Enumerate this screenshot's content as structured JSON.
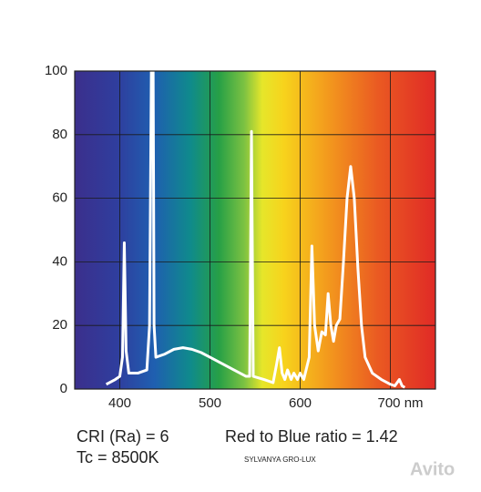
{
  "chart_data": {
    "type": "line",
    "x": [
      385,
      395,
      400,
      403,
      405,
      407,
      410,
      420,
      430,
      433,
      435,
      437,
      438,
      440,
      450,
      460,
      470,
      480,
      490,
      500,
      510,
      520,
      530,
      540,
      544,
      546,
      548,
      560,
      570,
      574,
      577,
      580,
      583,
      586,
      590,
      593,
      597,
      600,
      604,
      610,
      613,
      616,
      620,
      624,
      628,
      631,
      634,
      637,
      640,
      644,
      648,
      652,
      656,
      660,
      664,
      668,
      672,
      680,
      690,
      700,
      705,
      710,
      713,
      716
    ],
    "values": [
      1.5,
      3,
      4,
      10,
      46,
      12,
      5,
      5,
      6,
      20,
      100,
      100,
      20,
      10,
      11,
      12.5,
      13,
      12.5,
      11.5,
      10,
      8.5,
      7,
      5.5,
      4,
      4,
      81,
      4,
      3,
      2,
      8,
      13,
      5,
      3,
      6,
      3,
      5,
      3,
      5,
      3,
      10,
      45,
      20,
      12,
      18,
      17,
      30,
      20,
      15,
      20,
      22,
      40,
      60,
      70,
      60,
      38,
      20,
      10,
      5,
      3,
      1.5,
      1,
      3,
      1,
      0.5
    ],
    "color": "#ffffff",
    "xlim": [
      350,
      750
    ],
    "ylim": [
      0,
      100
    ],
    "xticks": [
      400,
      500,
      600,
      {
        "value": 700,
        "label": "700 nm"
      }
    ],
    "yticks": [
      0,
      20,
      40,
      60,
      80,
      100
    ],
    "grid": true,
    "annotations": [
      "CRI (Ra) = 6",
      "Tc = 8500K",
      "Red to Blue ratio = 1.42",
      "SYLVANYA GRO-LUX",
      "Avito"
    ]
  }
}
